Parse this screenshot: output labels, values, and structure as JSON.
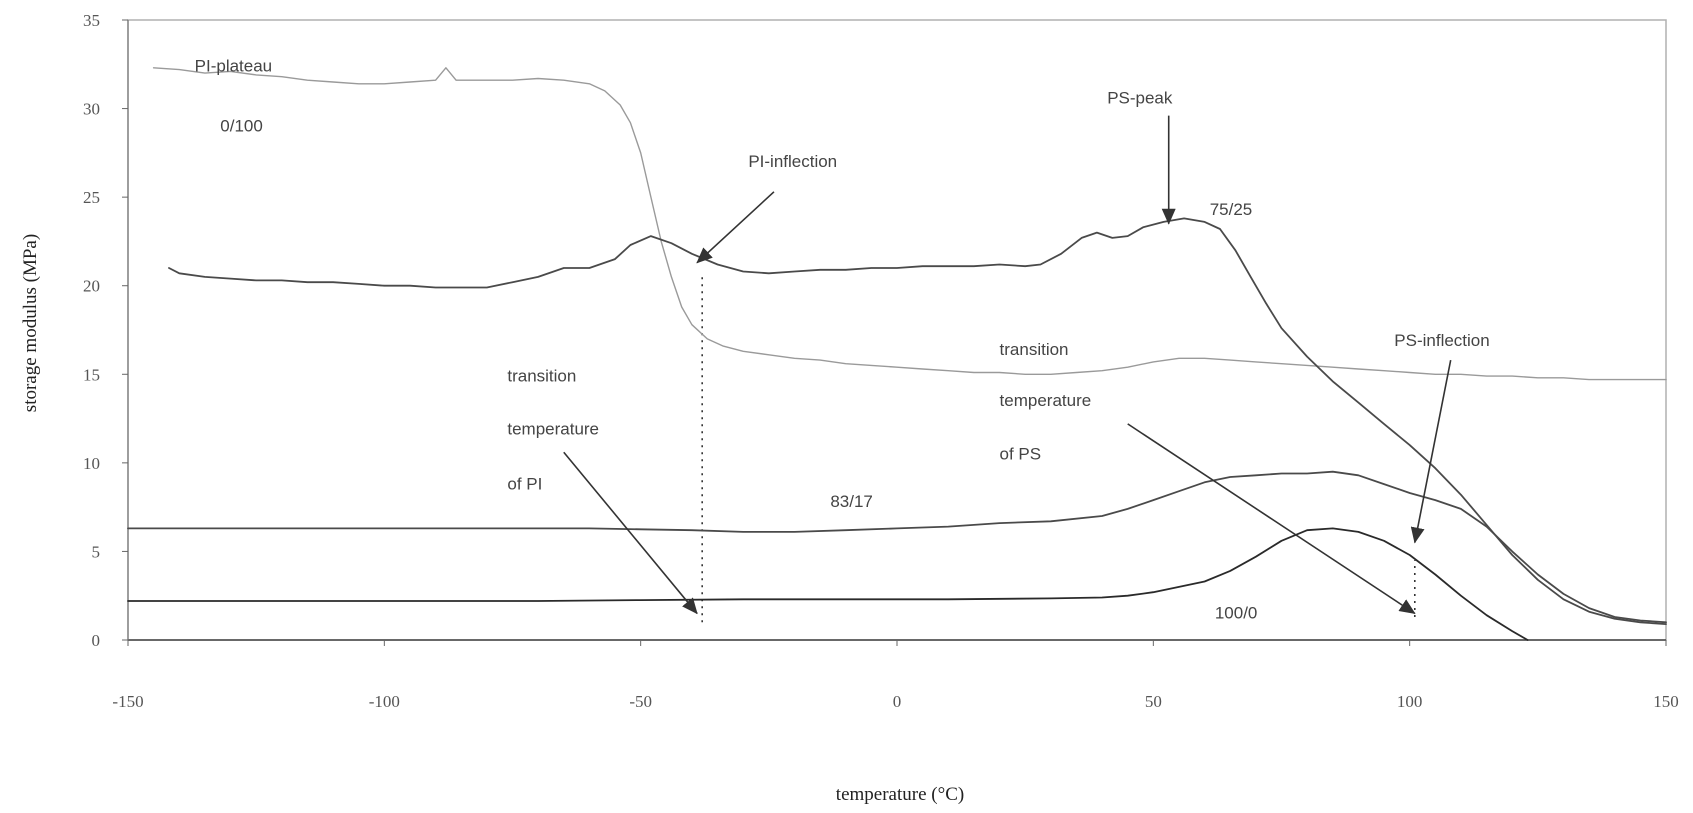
{
  "chart_data": {
    "type": "line",
    "xlabel": "temperature (°C)",
    "ylabel": "storage modulus (MPa)",
    "xlim": [
      -150,
      150
    ],
    "ylim": [
      0,
      35
    ],
    "xticks": [
      -150,
      -100,
      -50,
      0,
      50,
      100,
      150
    ],
    "xtick_labels": [
      "-150",
      "-100",
      "-50",
      "0",
      "50",
      "100",
      "150"
    ],
    "yticks": [
      0,
      5,
      10,
      15,
      20,
      25,
      30,
      35
    ],
    "ytick_labels": [
      "0",
      "5",
      "10",
      "15",
      "20",
      "25",
      "30",
      "35"
    ],
    "grid": false,
    "series": [
      {
        "name": "0/100",
        "color": "#9a9a9a",
        "points": [
          [
            -145,
            32.3
          ],
          [
            -140,
            32.2
          ],
          [
            -135,
            32.0
          ],
          [
            -130,
            32.1
          ],
          [
            -125,
            31.9
          ],
          [
            -120,
            31.8
          ],
          [
            -115,
            31.6
          ],
          [
            -110,
            31.5
          ],
          [
            -105,
            31.4
          ],
          [
            -100,
            31.4
          ],
          [
            -95,
            31.5
          ],
          [
            -90,
            31.6
          ],
          [
            -88,
            32.3
          ],
          [
            -86,
            31.6
          ],
          [
            -80,
            31.6
          ],
          [
            -75,
            31.6
          ],
          [
            -70,
            31.7
          ],
          [
            -65,
            31.6
          ],
          [
            -60,
            31.4
          ],
          [
            -57,
            31.0
          ],
          [
            -54,
            30.2
          ],
          [
            -52,
            29.2
          ],
          [
            -50,
            27.5
          ],
          [
            -48,
            25.0
          ],
          [
            -46,
            22.5
          ],
          [
            -44,
            20.5
          ],
          [
            -42,
            18.8
          ],
          [
            -40,
            17.8
          ],
          [
            -37,
            17.0
          ],
          [
            -34,
            16.6
          ],
          [
            -30,
            16.3
          ],
          [
            -25,
            16.1
          ],
          [
            -20,
            15.9
          ],
          [
            -15,
            15.8
          ],
          [
            -10,
            15.6
          ],
          [
            -5,
            15.5
          ],
          [
            0,
            15.4
          ],
          [
            5,
            15.3
          ],
          [
            10,
            15.2
          ],
          [
            15,
            15.1
          ],
          [
            20,
            15.1
          ],
          [
            25,
            15.0
          ],
          [
            30,
            15.0
          ],
          [
            35,
            15.1
          ],
          [
            40,
            15.2
          ],
          [
            45,
            15.4
          ],
          [
            50,
            15.7
          ],
          [
            55,
            15.9
          ],
          [
            60,
            15.9
          ],
          [
            65,
            15.8
          ],
          [
            70,
            15.7
          ],
          [
            75,
            15.6
          ],
          [
            80,
            15.5
          ],
          [
            85,
            15.4
          ],
          [
            90,
            15.3
          ],
          [
            95,
            15.2
          ],
          [
            100,
            15.1
          ],
          [
            105,
            15.0
          ],
          [
            110,
            15.0
          ],
          [
            115,
            14.9
          ],
          [
            120,
            14.9
          ],
          [
            125,
            14.8
          ],
          [
            130,
            14.8
          ],
          [
            135,
            14.7
          ],
          [
            140,
            14.7
          ],
          [
            145,
            14.7
          ],
          [
            150,
            14.7
          ]
        ]
      },
      {
        "name": "75/25",
        "color": "#4a4a4a",
        "points": [
          [
            -142,
            21.0
          ],
          [
            -140,
            20.7
          ],
          [
            -135,
            20.5
          ],
          [
            -130,
            20.4
          ],
          [
            -125,
            20.3
          ],
          [
            -120,
            20.3
          ],
          [
            -115,
            20.2
          ],
          [
            -110,
            20.2
          ],
          [
            -105,
            20.1
          ],
          [
            -100,
            20.0
          ],
          [
            -95,
            20.0
          ],
          [
            -90,
            19.9
          ],
          [
            -85,
            19.9
          ],
          [
            -80,
            19.9
          ],
          [
            -75,
            20.2
          ],
          [
            -70,
            20.5
          ],
          [
            -65,
            21.0
          ],
          [
            -60,
            21.0
          ],
          [
            -55,
            21.5
          ],
          [
            -52,
            22.3
          ],
          [
            -48,
            22.8
          ],
          [
            -44,
            22.4
          ],
          [
            -40,
            21.8
          ],
          [
            -35,
            21.2
          ],
          [
            -30,
            20.8
          ],
          [
            -25,
            20.7
          ],
          [
            -20,
            20.8
          ],
          [
            -15,
            20.9
          ],
          [
            -10,
            20.9
          ],
          [
            -5,
            21.0
          ],
          [
            0,
            21.0
          ],
          [
            5,
            21.1
          ],
          [
            10,
            21.1
          ],
          [
            15,
            21.1
          ],
          [
            20,
            21.2
          ],
          [
            25,
            21.1
          ],
          [
            28,
            21.2
          ],
          [
            32,
            21.8
          ],
          [
            36,
            22.7
          ],
          [
            39,
            23.0
          ],
          [
            42,
            22.7
          ],
          [
            45,
            22.8
          ],
          [
            48,
            23.3
          ],
          [
            52,
            23.6
          ],
          [
            56,
            23.8
          ],
          [
            60,
            23.6
          ],
          [
            63,
            23.2
          ],
          [
            66,
            22.0
          ],
          [
            69,
            20.5
          ],
          [
            72,
            19.0
          ],
          [
            75,
            17.6
          ],
          [
            80,
            16.0
          ],
          [
            85,
            14.6
          ],
          [
            90,
            13.4
          ],
          [
            95,
            12.2
          ],
          [
            100,
            11.0
          ],
          [
            105,
            9.7
          ],
          [
            110,
            8.2
          ],
          [
            115,
            6.5
          ],
          [
            120,
            4.8
          ],
          [
            125,
            3.4
          ],
          [
            130,
            2.3
          ],
          [
            135,
            1.6
          ],
          [
            140,
            1.2
          ],
          [
            145,
            1.0
          ],
          [
            150,
            0.9
          ]
        ]
      },
      {
        "name": "83/17",
        "color": "#4a4a4a",
        "points": [
          [
            -150,
            6.3
          ],
          [
            -140,
            6.3
          ],
          [
            -130,
            6.3
          ],
          [
            -120,
            6.3
          ],
          [
            -110,
            6.3
          ],
          [
            -100,
            6.3
          ],
          [
            -90,
            6.3
          ],
          [
            -80,
            6.3
          ],
          [
            -70,
            6.3
          ],
          [
            -60,
            6.3
          ],
          [
            -50,
            6.25
          ],
          [
            -40,
            6.2
          ],
          [
            -30,
            6.1
          ],
          [
            -20,
            6.1
          ],
          [
            -10,
            6.2
          ],
          [
            0,
            6.3
          ],
          [
            10,
            6.4
          ],
          [
            20,
            6.6
          ],
          [
            30,
            6.7
          ],
          [
            40,
            7.0
          ],
          [
            45,
            7.4
          ],
          [
            50,
            7.9
          ],
          [
            55,
            8.4
          ],
          [
            60,
            8.9
          ],
          [
            65,
            9.2
          ],
          [
            70,
            9.3
          ],
          [
            75,
            9.4
          ],
          [
            80,
            9.4
          ],
          [
            85,
            9.5
          ],
          [
            90,
            9.3
          ],
          [
            95,
            8.8
          ],
          [
            100,
            8.3
          ],
          [
            105,
            7.9
          ],
          [
            110,
            7.4
          ],
          [
            115,
            6.4
          ],
          [
            120,
            5.0
          ],
          [
            125,
            3.7
          ],
          [
            130,
            2.6
          ],
          [
            135,
            1.8
          ],
          [
            140,
            1.3
          ],
          [
            145,
            1.1
          ],
          [
            150,
            1.0
          ]
        ]
      },
      {
        "name": "100/0",
        "color": "#2a2a2a",
        "points": [
          [
            -150,
            2.2
          ],
          [
            -130,
            2.2
          ],
          [
            -110,
            2.2
          ],
          [
            -90,
            2.2
          ],
          [
            -70,
            2.2
          ],
          [
            -50,
            2.25
          ],
          [
            -30,
            2.3
          ],
          [
            -10,
            2.3
          ],
          [
            10,
            2.3
          ],
          [
            30,
            2.35
          ],
          [
            40,
            2.4
          ],
          [
            45,
            2.5
          ],
          [
            50,
            2.7
          ],
          [
            55,
            3.0
          ],
          [
            60,
            3.3
          ],
          [
            65,
            3.9
          ],
          [
            70,
            4.7
          ],
          [
            75,
            5.6
          ],
          [
            80,
            6.2
          ],
          [
            85,
            6.3
          ],
          [
            90,
            6.1
          ],
          [
            95,
            5.6
          ],
          [
            100,
            4.8
          ],
          [
            105,
            3.7
          ],
          [
            110,
            2.5
          ],
          [
            115,
            1.4
          ],
          [
            120,
            0.5
          ],
          [
            123,
            0.0
          ]
        ]
      }
    ],
    "vlines": [
      {
        "x": -38,
        "y_from": 1.0,
        "y_to": 20.5
      },
      {
        "x": 101,
        "y_from": 1.3,
        "y_to": 4.5
      }
    ],
    "annotations": [
      {
        "text": "PI-plateau",
        "x": -137,
        "y": 32.1
      },
      {
        "text": "0/100",
        "x": -132,
        "y": 28.7
      },
      {
        "text": "PI-inflection",
        "x": -29,
        "y": 26.7
      },
      {
        "text": "PS-peak",
        "x": 41,
        "y": 30.3
      },
      {
        "text": "75/25",
        "x": 61,
        "y": 24.0
      },
      {
        "text": "transition",
        "x": 20,
        "y": 16.1
      },
      {
        "text": "temperature",
        "x": 20,
        "y": 13.2
      },
      {
        "text": "of PS",
        "x": 20,
        "y": 10.2
      },
      {
        "text": "PS-inflection",
        "x": 97,
        "y": 16.6
      },
      {
        "text": "transition",
        "x": -76,
        "y": 14.6
      },
      {
        "text": "temperature",
        "x": -76,
        "y": 11.6
      },
      {
        "text": "of PI",
        "x": -76,
        "y": 8.5
      },
      {
        "text": "83/17",
        "x": -13,
        "y": 7.5
      },
      {
        "text": "100/0",
        "x": 62,
        "y": 1.2
      }
    ],
    "arrows": [
      {
        "name": "pi-inflection-arrow",
        "from": [
          -24,
          25.3
        ],
        "to": [
          -39,
          21.3
        ]
      },
      {
        "name": "ps-peak-arrow",
        "from": [
          53,
          29.6
        ],
        "to": [
          53,
          23.5
        ]
      },
      {
        "name": "ps-inflection-arrow",
        "from": [
          108,
          15.8
        ],
        "to": [
          101,
          5.5
        ]
      },
      {
        "name": "ps-transition-arrow",
        "from": [
          45,
          12.2
        ],
        "to": [
          101,
          1.5
        ]
      },
      {
        "name": "pi-transition-arrow",
        "from": [
          -65,
          10.6
        ],
        "to": [
          -39,
          1.5
        ]
      }
    ]
  }
}
